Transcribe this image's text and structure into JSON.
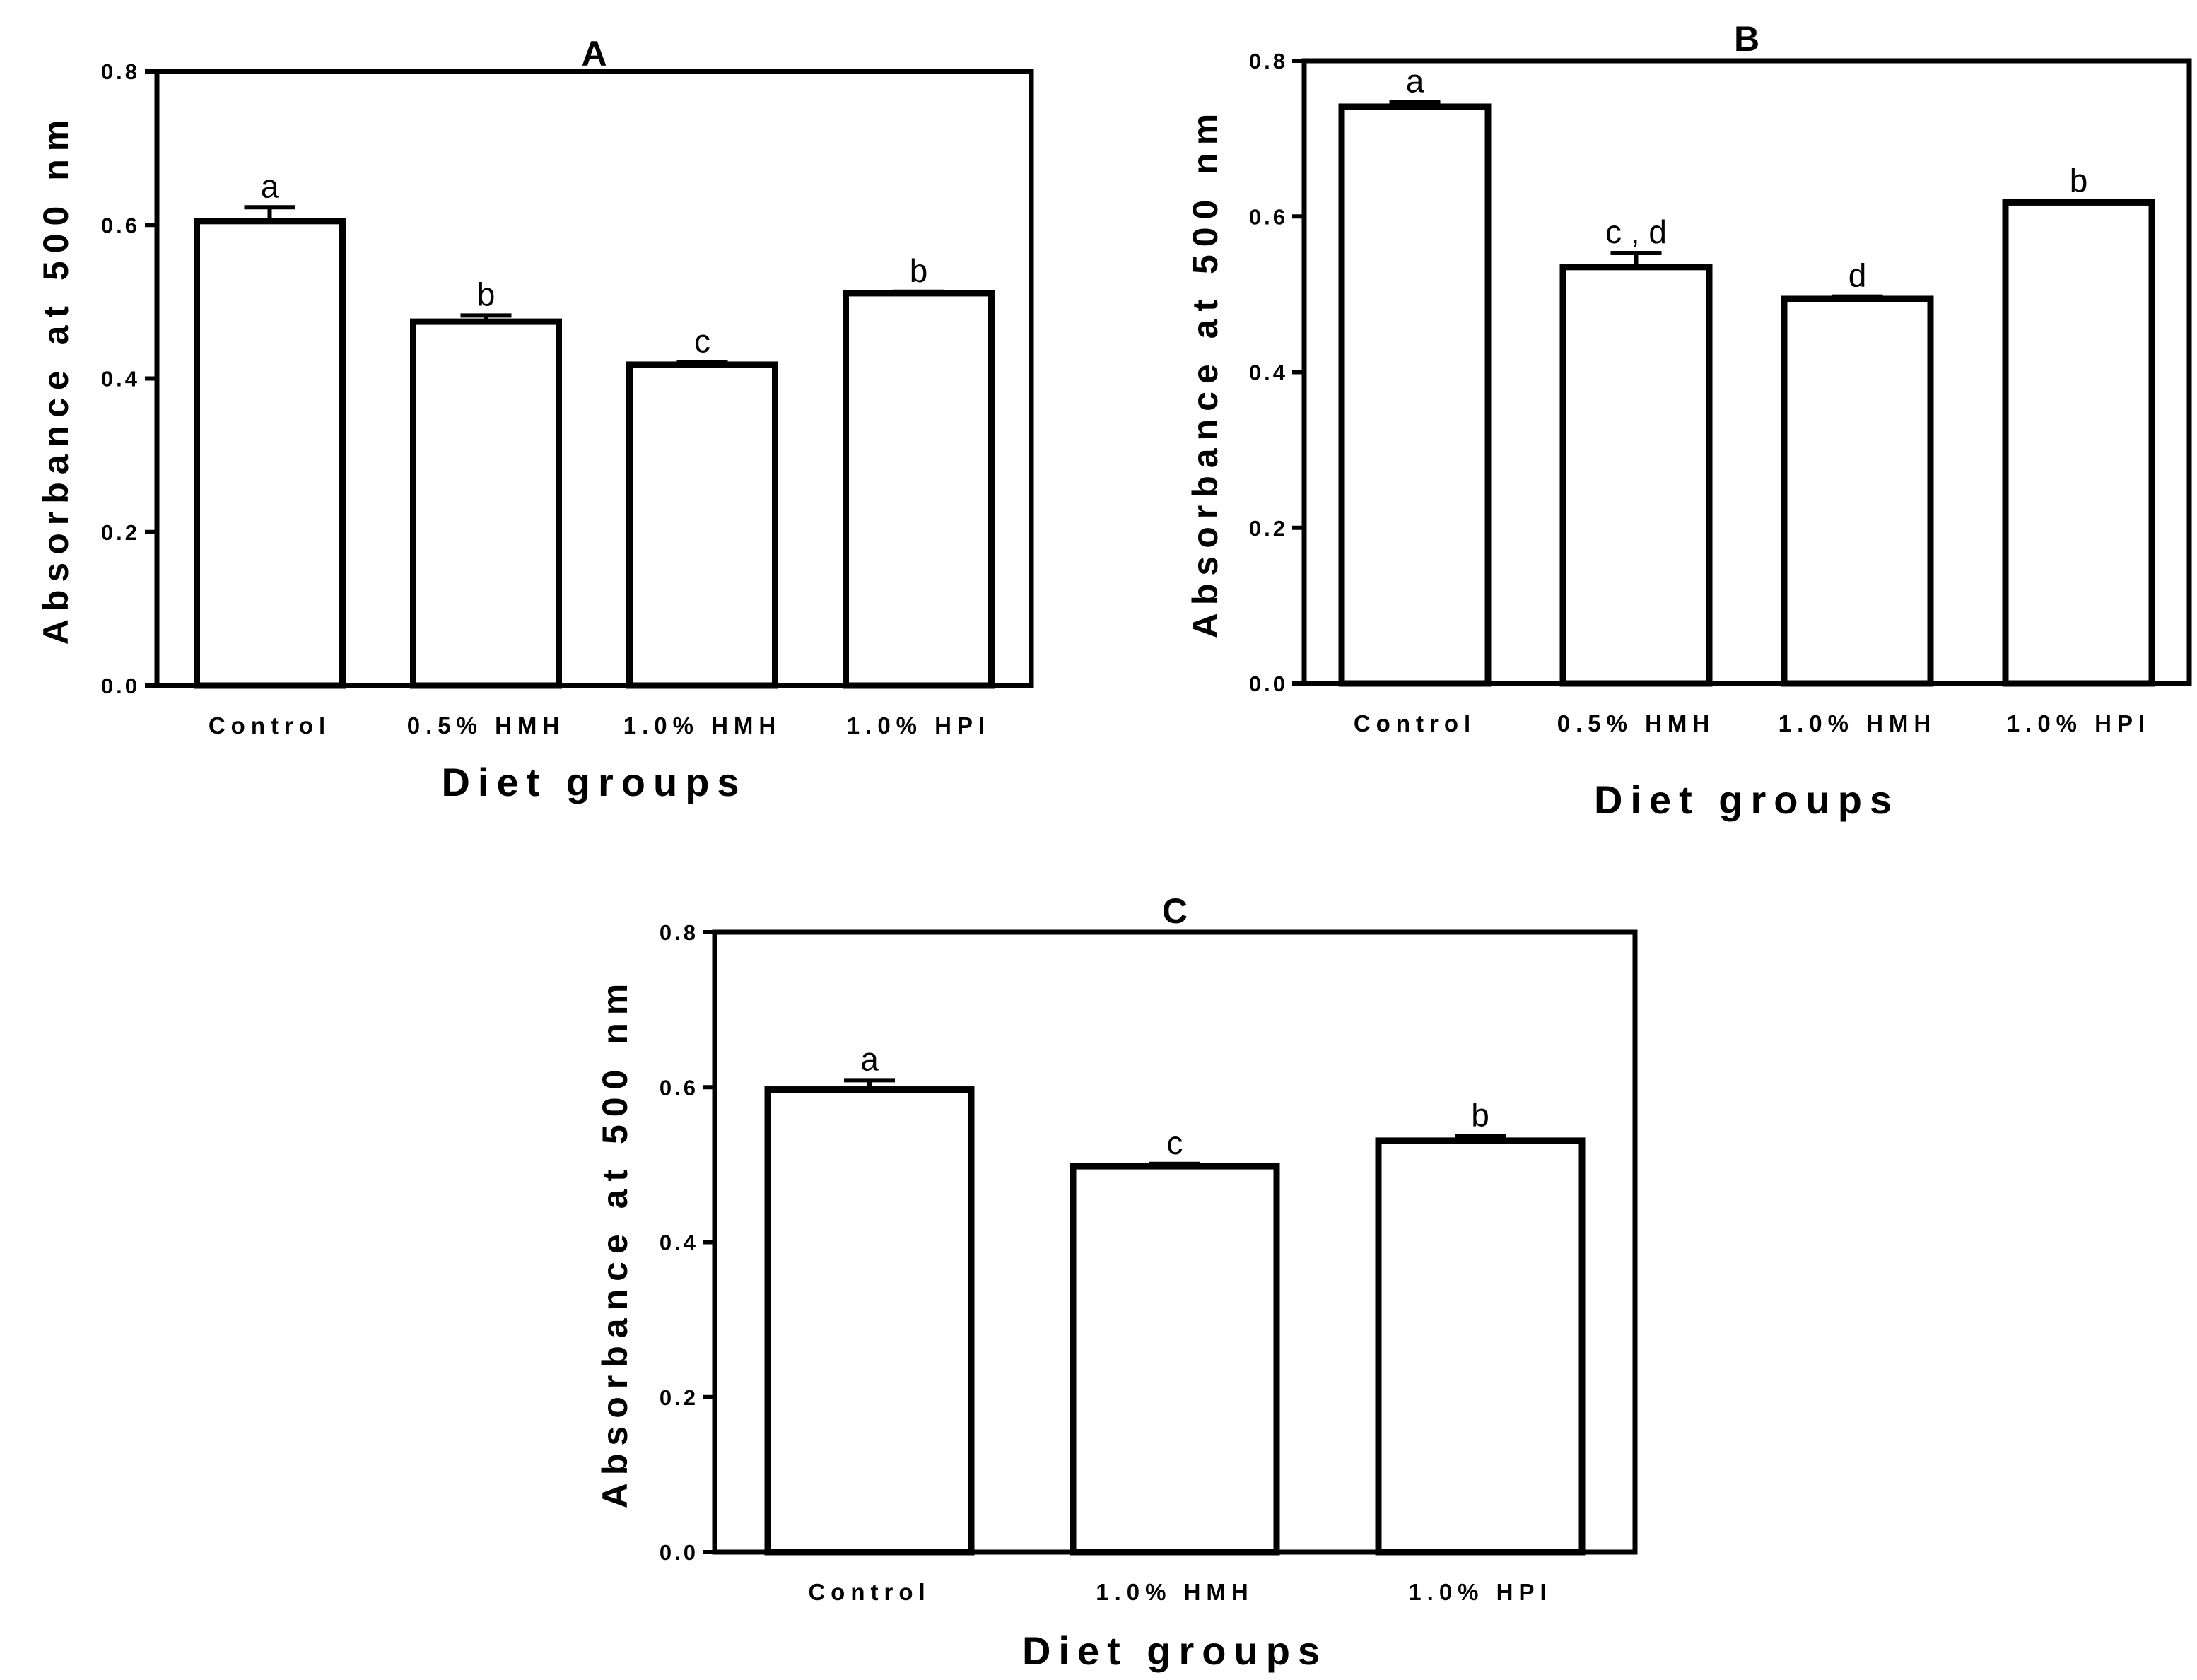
{
  "chart_data": [
    {
      "type": "bar",
      "title": "A",
      "xlabel": "Diet groups",
      "ylabel": "Absorbance at 500 nm",
      "ylim": [
        0,
        0.8
      ],
      "yticks": [
        "0.0",
        "0.2",
        "0.4",
        "0.6",
        "0.8"
      ],
      "categories": [
        "Control",
        "0.5% HMH",
        "1.0% HMH",
        "1.0% HPI"
      ],
      "values": [
        0.605,
        0.474,
        0.418,
        0.511
      ],
      "errors": [
        0.018,
        0.008,
        0.003,
        0.002
      ],
      "labels": [
        "a",
        "b",
        "c",
        "b"
      ]
    },
    {
      "type": "bar",
      "title": "B",
      "xlabel": "Diet groups",
      "ylabel": "Absorbance at 500 nm",
      "ylim": [
        0,
        0.8
      ],
      "yticks": [
        "0.0",
        "0.2",
        "0.4",
        "0.6",
        "0.8"
      ],
      "categories": [
        "Control",
        "0.5% HMH",
        "1.0% HMH",
        "1.0% HPI"
      ],
      "values": [
        0.741,
        0.535,
        0.494,
        0.618
      ],
      "errors": [
        0.006,
        0.018,
        0.003,
        0.001
      ],
      "labels": [
        "a",
        "c , d",
        "d",
        "b"
      ]
    },
    {
      "type": "bar",
      "title": "C",
      "xlabel": "Diet groups",
      "ylabel": "Absorbance at 500 nm",
      "ylim": [
        0,
        0.8
      ],
      "yticks": [
        "0.0",
        "0.2",
        "0.4",
        "0.6",
        "0.8"
      ],
      "categories": [
        "Control",
        "1.0% HMH",
        "1.0% HPI"
      ],
      "values": [
        0.597,
        0.498,
        0.531
      ],
      "errors": [
        0.012,
        0.003,
        0.006
      ],
      "labels": [
        "a",
        "c",
        "b"
      ]
    }
  ]
}
